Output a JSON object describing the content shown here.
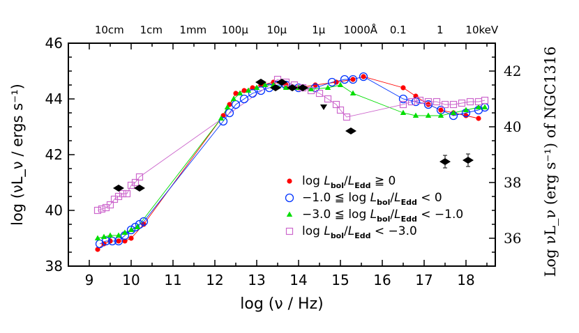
{
  "chart_data": {
    "type": "scatter",
    "xlabel": "log (ν / Hz)",
    "ylabel": "log (νL_ν / ergs s⁻¹)",
    "ylabel_right": "Log νL_ν (erg s⁻¹) of NGC1316",
    "xlim": [
      8.5,
      18.7
    ],
    "ylim": [
      38,
      46
    ],
    "ylim_right": [
      35,
      43
    ],
    "x_ticks": [
      "9",
      "10",
      "11",
      "12",
      "13",
      "14",
      "15",
      "16",
      "17",
      "18"
    ],
    "y_ticks": [
      "38",
      "40",
      "42",
      "44",
      "46"
    ],
    "y_right_ticks": [
      "36",
      "38",
      "40",
      "42"
    ],
    "top_labels": [
      {
        "text": "10cm",
        "x": 9.48
      },
      {
        "text": "1cm",
        "x": 10.48
      },
      {
        "text": "1mm",
        "x": 11.48
      },
      {
        "text": "100μ",
        "x": 12.48
      },
      {
        "text": "10μ",
        "x": 13.48
      },
      {
        "text": "1μ",
        "x": 14.48
      },
      {
        "text": "1000Å",
        "x": 15.48
      },
      {
        "text": "0.1",
        "x": 16.38
      },
      {
        "text": "1",
        "x": 17.38
      },
      {
        "text": "10keV",
        "x": 18.38
      }
    ],
    "series": [
      {
        "name": "log L_bol/L_Edd ≧ 0",
        "color": "#ff0000",
        "marker": "filled-circle",
        "x": [
          9.2,
          9.35,
          9.5,
          9.7,
          9.85,
          10.0,
          10.3,
          12.2,
          12.35,
          12.5,
          12.7,
          12.9,
          13.1,
          13.4,
          13.7,
          14.0,
          14.4,
          14.9,
          15.3,
          15.55,
          16.5,
          16.8,
          17.1,
          17.4,
          17.7,
          18.0,
          18.3
        ],
        "y": [
          38.6,
          38.8,
          38.9,
          38.9,
          38.9,
          39.0,
          39.5,
          43.4,
          43.8,
          44.2,
          44.3,
          44.4,
          44.5,
          44.6,
          44.5,
          44.4,
          44.5,
          44.6,
          44.7,
          44.8,
          44.4,
          44.1,
          43.8,
          43.6,
          43.5,
          43.4,
          43.3
        ]
      },
      {
        "name": "−1.0 ≦ log L_bol/L_Edd < 0",
        "color": "#0033ff",
        "marker": "open-circle",
        "x": [
          9.25,
          9.4,
          9.55,
          9.7,
          9.85,
          10.0,
          10.1,
          10.2,
          10.3,
          12.2,
          12.35,
          12.5,
          12.7,
          12.9,
          13.1,
          13.3,
          13.5,
          13.7,
          14.0,
          14.4,
          14.8,
          15.1,
          15.3,
          15.55,
          16.5,
          16.8,
          17.1,
          17.4,
          17.7,
          18.0,
          18.3,
          18.45
        ],
        "y": [
          38.8,
          38.9,
          38.9,
          38.9,
          39.1,
          39.3,
          39.4,
          39.5,
          39.6,
          43.2,
          43.5,
          43.8,
          44.0,
          44.2,
          44.3,
          44.4,
          44.5,
          44.5,
          44.4,
          44.4,
          44.6,
          44.7,
          44.7,
          44.8,
          44.0,
          43.9,
          43.8,
          43.6,
          43.4,
          43.5,
          43.6,
          43.7
        ]
      },
      {
        "name": "−3.0 ≦ log L_bol/L_Edd < −1.0",
        "color": "#00dd00",
        "marker": "filled-triangle",
        "x": [
          9.2,
          9.35,
          9.5,
          9.7,
          9.85,
          10.0,
          10.15,
          12.15,
          12.3,
          12.45,
          12.6,
          12.8,
          13.0,
          13.2,
          13.4,
          13.7,
          14.0,
          14.3,
          14.7,
          15.0,
          15.3,
          16.5,
          16.8,
          17.1,
          17.4,
          17.7,
          18.0,
          18.3,
          18.45
        ],
        "y": [
          39.0,
          39.05,
          39.1,
          39.1,
          39.2,
          39.3,
          39.4,
          43.3,
          43.7,
          44.0,
          44.2,
          44.3,
          44.4,
          44.5,
          44.5,
          44.4,
          44.4,
          44.35,
          44.4,
          44.5,
          44.2,
          43.5,
          43.4,
          43.4,
          43.4,
          43.5,
          43.6,
          43.7,
          43.7
        ]
      },
      {
        "name": "log L_bol/L_Edd < −3.0",
        "color": "#cc66cc",
        "marker": "open-square",
        "x": [
          9.2,
          9.3,
          9.4,
          9.5,
          9.6,
          9.7,
          9.8,
          9.9,
          10.0,
          10.1,
          10.2,
          13.5,
          13.7,
          13.9,
          14.1,
          14.3,
          14.5,
          14.7,
          14.9,
          15.0,
          15.15,
          16.5,
          16.7,
          16.9,
          17.1,
          17.3,
          17.5,
          17.7,
          17.9,
          18.1,
          18.3,
          18.45
        ],
        "y": [
          40.0,
          40.05,
          40.1,
          40.2,
          40.4,
          40.5,
          40.6,
          40.6,
          40.9,
          41.0,
          41.2,
          44.7,
          44.6,
          44.5,
          44.4,
          44.3,
          44.2,
          44.0,
          43.8,
          43.6,
          43.35,
          43.8,
          43.9,
          43.95,
          43.9,
          43.9,
          43.8,
          43.8,
          43.85,
          43.9,
          43.9,
          43.95
        ]
      },
      {
        "name": "NGC1316",
        "color": "#000000",
        "marker": "filled-diamond",
        "x": [
          9.7,
          10.2,
          13.1,
          13.45,
          13.6,
          13.85,
          14.1,
          15.25,
          17.5,
          18.05
        ],
        "y": [
          40.8,
          40.8,
          44.6,
          44.4,
          44.6,
          44.4,
          44.4,
          42.85,
          41.75,
          41.8
        ]
      },
      {
        "name": "NGC1316 upper limit",
        "color": "#000000",
        "marker": "down-triangle",
        "x": [
          14.6
        ],
        "y": [
          43.7
        ]
      }
    ],
    "legend": {
      "position": "lower-right",
      "entries": [
        {
          "series": 0,
          "text": "log L_bol/L_Edd ≧ 0"
        },
        {
          "series": 1,
          "text": "−1.0 ≦ log L_bol/L_Edd < 0"
        },
        {
          "series": 2,
          "text": "−3.0 ≦ log L_bol/L_Edd < −1.0"
        },
        {
          "series": 3,
          "text": "log L_bol/L_Edd < −3.0"
        }
      ]
    }
  }
}
